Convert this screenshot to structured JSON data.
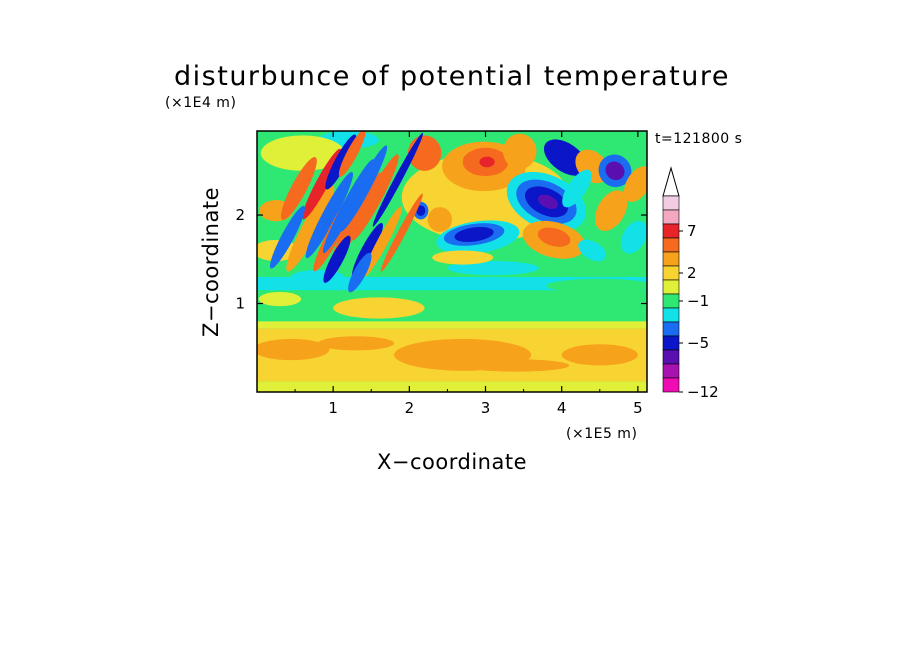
{
  "chart_data": {
    "type": "heatmap",
    "title": "disturbunce of potential temperature",
    "xlabel": "X−coordinate",
    "ylabel": "Z−coordinate",
    "x_unit": "(×1E5 m)",
    "y_unit": "(×1E4 m)",
    "time_label": "t=121800 s",
    "xlim": [
      0,
      5.12
    ],
    "ylim": [
      0,
      2.95
    ],
    "x_ticks": [
      {
        "value": 1,
        "label": "1"
      },
      {
        "value": 2,
        "label": "2"
      },
      {
        "value": 3,
        "label": "3"
      },
      {
        "value": 4,
        "label": "4"
      },
      {
        "value": 5,
        "label": "5"
      }
    ],
    "y_ticks": [
      {
        "value": 1,
        "label": "1"
      },
      {
        "value": 2,
        "label": "2"
      }
    ],
    "colorbar": {
      "levels": [
        {
          "color": "#f2cce0"
        },
        {
          "color": "#f4a8c0"
        },
        {
          "color": "#e8242b"
        },
        {
          "color": "#f56a1e"
        },
        {
          "color": "#f7a21b"
        },
        {
          "color": "#f8d432"
        },
        {
          "color": "#e0ef38"
        },
        {
          "color": "#2ee873"
        },
        {
          "color": "#12e2e8"
        },
        {
          "color": "#1a6cf0"
        },
        {
          "color": "#0a16c8"
        },
        {
          "color": "#5a10b0"
        },
        {
          "color": "#a812b0"
        },
        {
          "color": "#f00cb4"
        }
      ],
      "tick_labels": [
        {
          "label": "7",
          "at": 2.5
        },
        {
          "label": "2",
          "at": 5.5
        },
        {
          "label": "−1",
          "at": 7.5
        },
        {
          "label": "−5",
          "at": 10.5
        },
        {
          "label": "−12",
          "at": 14
        }
      ]
    },
    "bands": [
      {
        "y0": 0.0,
        "y1": 0.12,
        "color": "#e0ef38"
      },
      {
        "y0": 0.12,
        "y1": 0.72,
        "color": "#f8d432"
      },
      {
        "y0": 0.72,
        "y1": 0.8,
        "color": "#e0ef38"
      },
      {
        "y0": 0.8,
        "y1": 1.15,
        "color": "#2ee873"
      },
      {
        "y0": 1.15,
        "y1": 1.3,
        "color": "#12e2e8"
      },
      {
        "y0": 1.3,
        "y1": 1.5,
        "color": "#2ee873"
      },
      {
        "y0": 1.5,
        "y1": 2.95,
        "color": "#2ee873"
      }
    ],
    "features": [
      {
        "x": 2.7,
        "y": 0.42,
        "rx": 0.9,
        "ry": 0.18,
        "rot": 0,
        "color": "#f7a21b"
      },
      {
        "x": 0.45,
        "y": 0.48,
        "rx": 0.5,
        "ry": 0.12,
        "rot": 0,
        "color": "#f7a21b"
      },
      {
        "x": 4.5,
        "y": 0.42,
        "rx": 0.5,
        "ry": 0.12,
        "rot": 0,
        "color": "#f7a21b"
      },
      {
        "x": 1.6,
        "y": 0.95,
        "rx": 0.6,
        "ry": 0.12,
        "rot": 0,
        "color": "#f8d432"
      },
      {
        "x": 0.3,
        "y": 1.05,
        "rx": 0.28,
        "ry": 0.08,
        "rot": 0,
        "color": "#e0ef38"
      },
      {
        "x": 3.0,
        "y": 2.2,
        "rx": 1.1,
        "ry": 0.5,
        "rot": 0,
        "color": "#f8d432"
      },
      {
        "x": 2.98,
        "y": 2.55,
        "rx": 0.55,
        "ry": 0.28,
        "rot": 0,
        "color": "#f7a21b"
      },
      {
        "x": 3.0,
        "y": 2.6,
        "rx": 0.3,
        "ry": 0.16,
        "rot": 0,
        "color": "#f56a1e"
      },
      {
        "x": 3.02,
        "y": 2.6,
        "rx": 0.1,
        "ry": 0.06,
        "rot": 0,
        "color": "#e8242b"
      },
      {
        "x": 2.2,
        "y": 2.7,
        "rx": 0.22,
        "ry": 0.2,
        "rot": 0,
        "color": "#f56a1e"
      },
      {
        "x": 3.1,
        "y": 1.4,
        "rx": 0.6,
        "ry": 0.08,
        "rot": 0,
        "color": "#12e2e8"
      },
      {
        "x": 2.9,
        "y": 1.75,
        "rx": 0.55,
        "ry": 0.18,
        "rot": -8,
        "color": "#12e2e8"
      },
      {
        "x": 2.85,
        "y": 1.78,
        "rx": 0.4,
        "ry": 0.12,
        "rot": -8,
        "color": "#1a6cf0"
      },
      {
        "x": 2.85,
        "y": 1.78,
        "rx": 0.26,
        "ry": 0.08,
        "rot": -8,
        "color": "#0a16c8"
      },
      {
        "x": 3.8,
        "y": 2.15,
        "rx": 0.55,
        "ry": 0.3,
        "rot": 25,
        "color": "#12e2e8"
      },
      {
        "x": 3.8,
        "y": 2.15,
        "rx": 0.42,
        "ry": 0.22,
        "rot": 25,
        "color": "#1a6cf0"
      },
      {
        "x": 3.8,
        "y": 2.15,
        "rx": 0.3,
        "ry": 0.15,
        "rot": 25,
        "color": "#0a16c8"
      },
      {
        "x": 3.82,
        "y": 2.15,
        "rx": 0.14,
        "ry": 0.07,
        "rot": 25,
        "color": "#5a10b0"
      },
      {
        "x": 3.9,
        "y": 1.72,
        "rx": 0.42,
        "ry": 0.2,
        "rot": 15,
        "color": "#f7a21b"
      },
      {
        "x": 3.9,
        "y": 1.75,
        "rx": 0.22,
        "ry": 0.1,
        "rot": 15,
        "color": "#f56a1e"
      },
      {
        "x": 4.65,
        "y": 2.05,
        "rx": 0.18,
        "ry": 0.25,
        "rot": 30,
        "color": "#f7a21b"
      },
      {
        "x": 4.4,
        "y": 1.6,
        "rx": 0.2,
        "ry": 0.1,
        "rot": 30,
        "color": "#12e2e8"
      },
      {
        "x": 4.95,
        "y": 1.75,
        "rx": 0.15,
        "ry": 0.2,
        "rot": 30,
        "color": "#12e2e8"
      },
      {
        "x": 4.5,
        "y": 1.2,
        "rx": 0.7,
        "ry": 0.08,
        "rot": 0,
        "color": "#2ee873"
      },
      {
        "x": 2.7,
        "y": 1.52,
        "rx": 0.4,
        "ry": 0.08,
        "rot": 0,
        "color": "#f8d432"
      },
      {
        "x": 4.05,
        "y": 2.65,
        "rx": 0.32,
        "ry": 0.16,
        "rot": 35,
        "color": "#0a16c8"
      },
      {
        "x": 3.45,
        "y": 2.72,
        "rx": 0.22,
        "ry": 0.2,
        "rot": 0,
        "color": "#f7a21b"
      },
      {
        "x": 4.4,
        "y": 2.55,
        "rx": 0.25,
        "ry": 0.16,
        "rot": 45,
        "color": "#f7a21b"
      },
      {
        "x": 4.7,
        "y": 2.5,
        "rx": 0.22,
        "ry": 0.18,
        "rot": 40,
        "color": "#1a6cf0"
      },
      {
        "x": 4.7,
        "y": 2.5,
        "rx": 0.13,
        "ry": 0.1,
        "rot": 40,
        "color": "#5a10b0"
      },
      {
        "x": 5.0,
        "y": 2.35,
        "rx": 0.15,
        "ry": 0.22,
        "rot": 30,
        "color": "#f7a21b"
      },
      {
        "x": 4.2,
        "y": 2.3,
        "rx": 0.12,
        "ry": 0.25,
        "rot": 35,
        "color": "#12e2e8"
      },
      {
        "x": 1.2,
        "y": 2.85,
        "rx": 0.4,
        "ry": 0.1,
        "rot": 0,
        "color": "#12e2e8"
      },
      {
        "x": 0.6,
        "y": 2.7,
        "rx": 0.55,
        "ry": 0.2,
        "rot": 0,
        "color": "#e0ef38"
      },
      {
        "x": 0.25,
        "y": 1.6,
        "rx": 0.3,
        "ry": 0.12,
        "rot": 0,
        "color": "#f8d432"
      },
      {
        "x": 0.25,
        "y": 2.05,
        "rx": 0.22,
        "ry": 0.12,
        "rot": 0,
        "color": "#f7a21b"
      },
      {
        "x": 0.8,
        "y": 1.3,
        "rx": 0.35,
        "ry": 0.08,
        "rot": 0,
        "color": "#12e2e8"
      },
      {
        "x": 2.15,
        "y": 2.05,
        "rx": 0.1,
        "ry": 0.1,
        "rot": 0,
        "color": "#1a6cf0"
      },
      {
        "x": 2.15,
        "y": 2.05,
        "rx": 0.06,
        "ry": 0.06,
        "rot": 0,
        "color": "#0a16c8"
      },
      {
        "x": 2.4,
        "y": 1.95,
        "rx": 0.16,
        "ry": 0.14,
        "rot": 0,
        "color": "#f7a21b"
      },
      {
        "x": 1.3,
        "y": 0.55,
        "rx": 0.5,
        "ry": 0.08,
        "rot": 0,
        "color": "#f7a21b"
      },
      {
        "x": 3.4,
        "y": 0.3,
        "rx": 0.7,
        "ry": 0.07,
        "rot": 0,
        "color": "#f7a21b"
      }
    ],
    "streaks": [
      {
        "x": 0.7,
        "y": 1.85,
        "len": 0.55,
        "w": 0.11,
        "color": "#f7a21b"
      },
      {
        "x": 0.95,
        "y": 2.0,
        "len": 0.55,
        "w": 0.09,
        "color": "#1a6cf0"
      },
      {
        "x": 1.05,
        "y": 1.85,
        "len": 0.55,
        "w": 0.09,
        "color": "#f56a1e"
      },
      {
        "x": 1.2,
        "y": 2.1,
        "len": 0.6,
        "w": 0.08,
        "color": "#1a6cf0"
      },
      {
        "x": 1.3,
        "y": 1.95,
        "len": 0.6,
        "w": 0.09,
        "color": "#f56a1e"
      },
      {
        "x": 1.4,
        "y": 2.3,
        "len": 0.55,
        "w": 0.08,
        "color": "#1a6cf0"
      },
      {
        "x": 1.55,
        "y": 2.2,
        "len": 0.55,
        "w": 0.09,
        "color": "#f56a1e"
      },
      {
        "x": 0.85,
        "y": 2.35,
        "len": 0.45,
        "w": 0.08,
        "color": "#e8242b"
      },
      {
        "x": 1.1,
        "y": 2.6,
        "len": 0.35,
        "w": 0.08,
        "color": "#0a16c8"
      },
      {
        "x": 1.25,
        "y": 2.7,
        "len": 0.3,
        "w": 0.07,
        "color": "#f56a1e"
      },
      {
        "x": 0.55,
        "y": 2.3,
        "len": 0.4,
        "w": 0.1,
        "color": "#f56a1e"
      },
      {
        "x": 1.05,
        "y": 1.5,
        "len": 0.3,
        "w": 0.08,
        "color": "#0a16c8"
      },
      {
        "x": 1.45,
        "y": 1.6,
        "len": 0.35,
        "w": 0.08,
        "color": "#0a16c8"
      },
      {
        "x": 1.65,
        "y": 1.7,
        "len": 0.45,
        "w": 0.07,
        "color": "#f7a21b"
      },
      {
        "x": 1.85,
        "y": 2.4,
        "len": 0.6,
        "w": 0.05,
        "color": "#0a16c8"
      },
      {
        "x": 1.9,
        "y": 1.8,
        "len": 0.5,
        "w": 0.05,
        "color": "#f56a1e"
      },
      {
        "x": 0.4,
        "y": 1.75,
        "len": 0.4,
        "w": 0.08,
        "color": "#1a6cf0"
      },
      {
        "x": 1.35,
        "y": 1.35,
        "len": 0.25,
        "w": 0.08,
        "color": "#1a6cf0"
      }
    ]
  }
}
